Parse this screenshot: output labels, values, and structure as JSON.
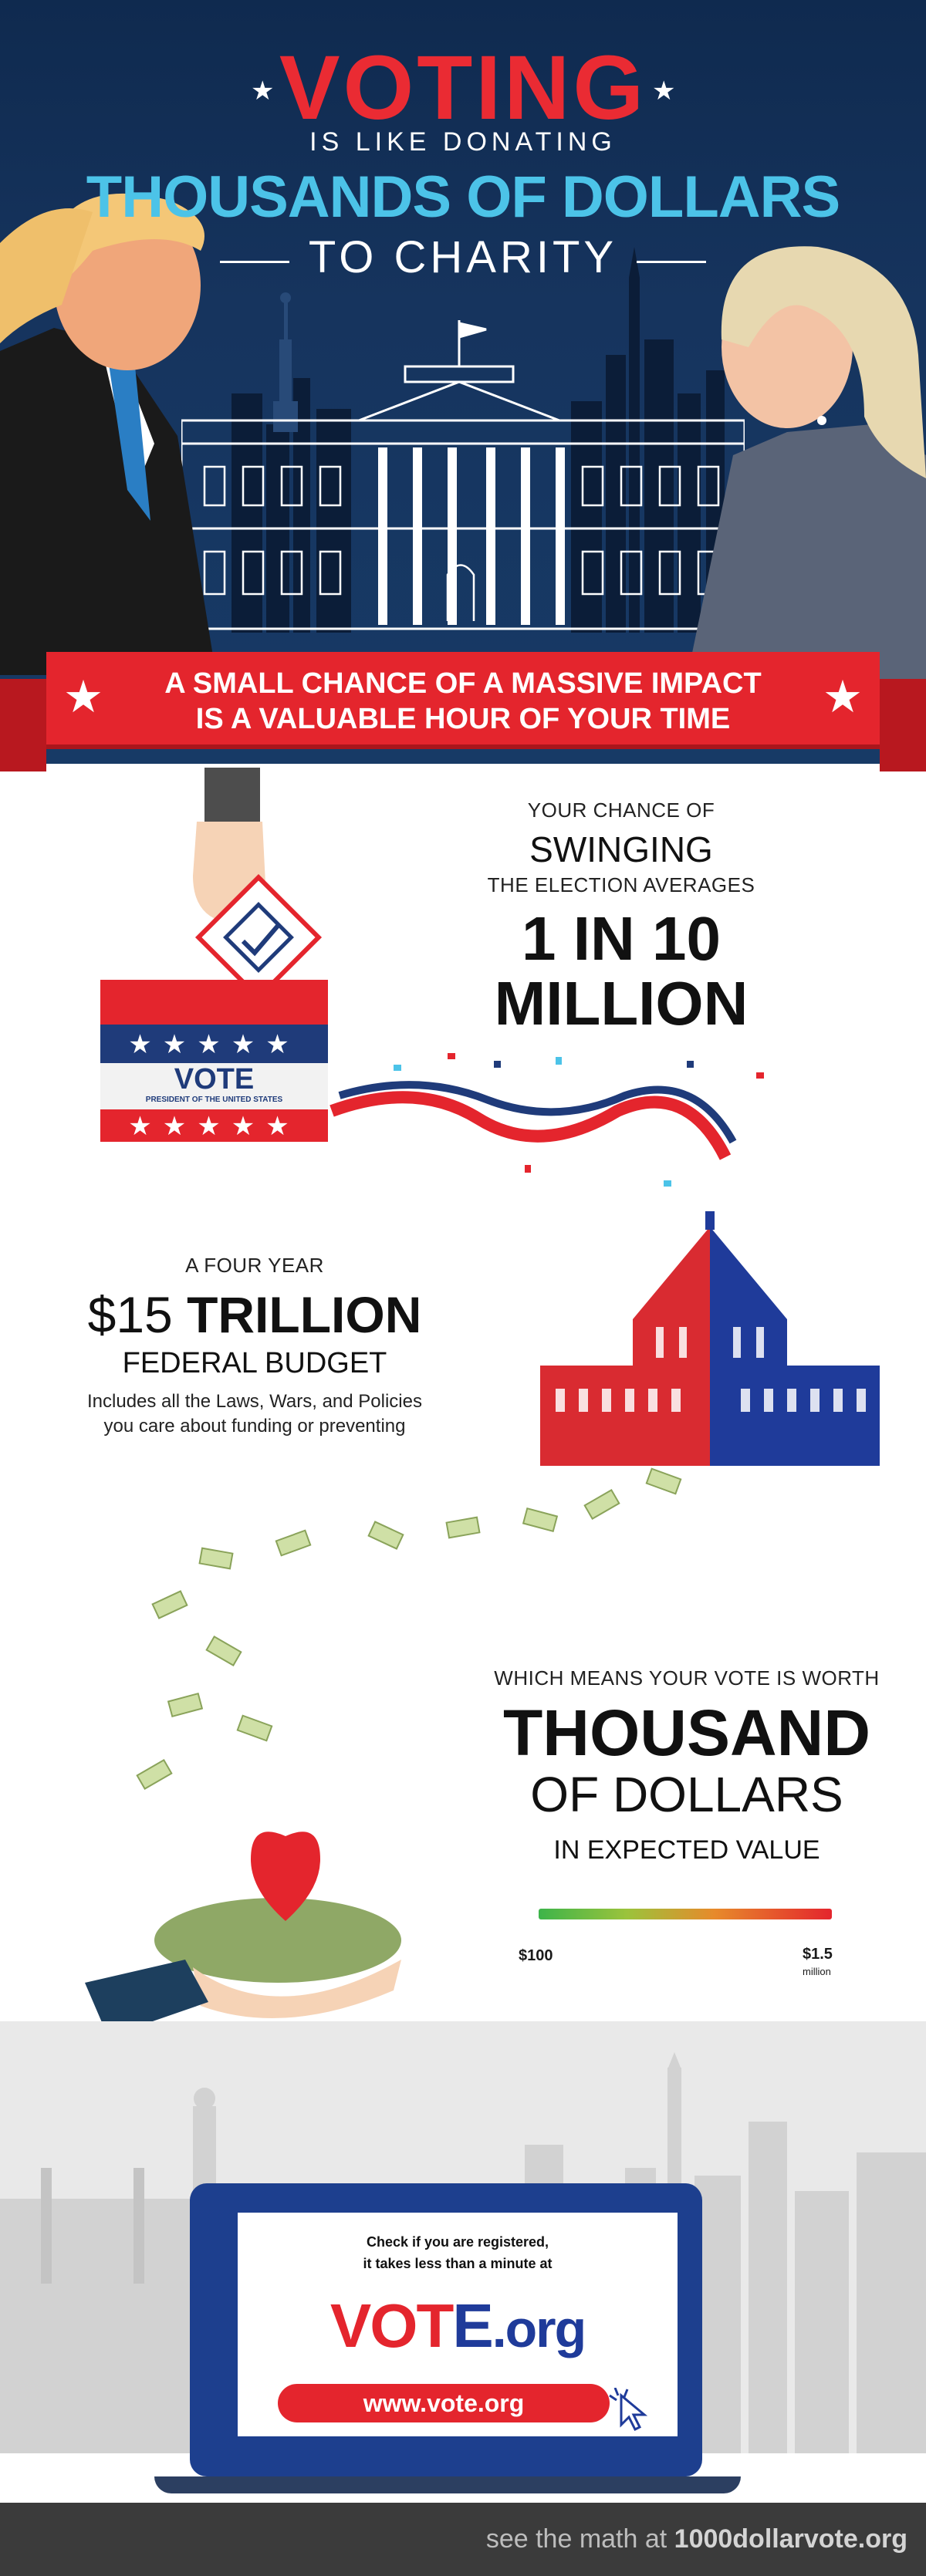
{
  "header": {
    "title_main": "VOTING",
    "title_line2": "IS LIKE DONATING",
    "title_line3": "THOUSANDS OF DOLLARS",
    "title_line4": "TO CHARITY",
    "star_glyph": "★"
  },
  "banner": {
    "line1": "A SMALL CHANCE OF A MASSIVE IMPACT",
    "line2": "IS A VALUABLE HOUR OF YOUR TIME",
    "star_glyph": "★"
  },
  "section_chance": {
    "line1": "YOUR CHANCE OF",
    "line2": "SWINGING",
    "line3": "THE ELECTION AVERAGES",
    "big1": "1 IN 10",
    "big2": "MILLION"
  },
  "ballot_box": {
    "vote_label": "VOTE",
    "sub_label": "PRESIDENT OF THE UNITED STATES",
    "stars": "★★★★★"
  },
  "section_budget": {
    "line1": "A FOUR YEAR",
    "amount_prefix": "$15",
    "amount_word": "TRILLION",
    "line3": "FEDERAL BUDGET",
    "desc1": "Includes all the Laws, Wars, and Policies",
    "desc2": "you care about funding or preventing"
  },
  "section_worth": {
    "line1": "WHICH MEANS YOUR VOTE IS WORTH",
    "big1": "THOUSAND",
    "big2": "OF DOLLARS",
    "line4": "IN EXPECTED VALUE",
    "scale_min": "$100",
    "scale_max": "$1.5",
    "scale_max_unit": "million"
  },
  "cta": {
    "line1": "Check if you are registered,",
    "line2": "it takes less than a minute at",
    "logo_vote": "VOT",
    "logo_e": "E",
    "logo_org": ".org",
    "url": "www.vote.org"
  },
  "footer": {
    "prefix": "see the math at ",
    "site": "1000dollarvote.org"
  },
  "colors": {
    "red": "#e4252d",
    "blue": "#1f3b7a",
    "navy": "#0f2a4f",
    "cyan": "#4cc3e8"
  }
}
